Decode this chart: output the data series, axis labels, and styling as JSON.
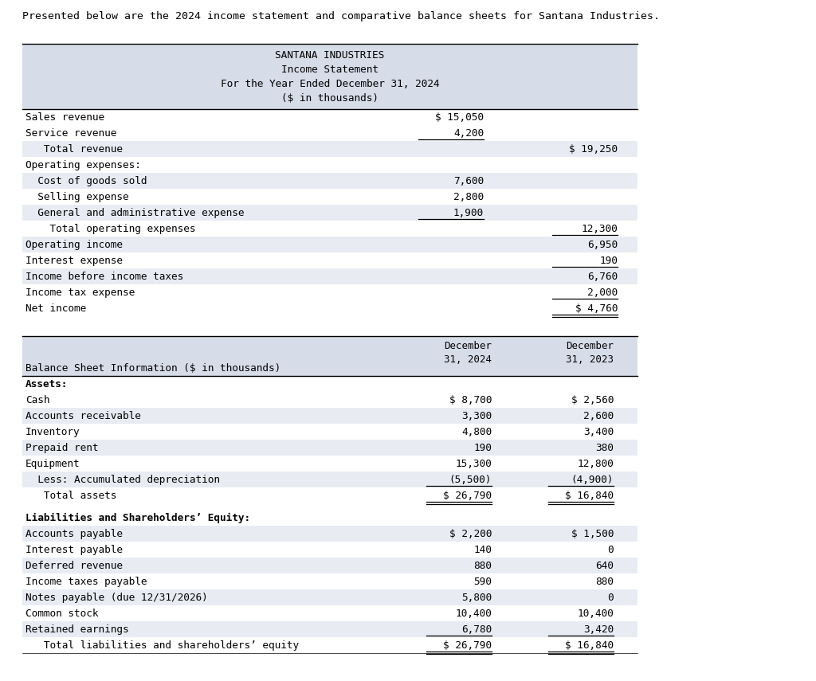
{
  "intro_text": "Presented below are the 2024 income statement and comparative balance sheets for Santana Industries.",
  "bg_color": "#ffffff",
  "header_bg": "#d6dce8",
  "row_bg_white": "#ffffff",
  "row_bg_alt": "#e8ecf2",
  "text_color": "#000000",
  "font_size": 9.2,
  "mono_font": "DejaVu Sans Mono",
  "income_statement": {
    "title_lines": [
      "SANTANA INDUSTRIES",
      "Income Statement",
      "For the Year Ended December 31, 2024",
      "($ in thousands)"
    ],
    "rows": [
      {
        "label": "Sales revenue",
        "col1": "$ 15,050",
        "col2": "",
        "underline_c1": false,
        "underline_c2": false,
        "double_c2": false
      },
      {
        "label": "Service revenue",
        "col1": "4,200",
        "col2": "",
        "underline_c1": true,
        "underline_c2": false,
        "double_c2": false
      },
      {
        "label": "   Total revenue",
        "col1": "",
        "col2": "$ 19,250",
        "underline_c1": false,
        "underline_c2": false,
        "double_c2": false
      },
      {
        "label": "Operating expenses:",
        "col1": "",
        "col2": "",
        "underline_c1": false,
        "underline_c2": false,
        "double_c2": false
      },
      {
        "label": "  Cost of goods sold",
        "col1": "7,600",
        "col2": "",
        "underline_c1": false,
        "underline_c2": false,
        "double_c2": false
      },
      {
        "label": "  Selling expense",
        "col1": "2,800",
        "col2": "",
        "underline_c1": false,
        "underline_c2": false,
        "double_c2": false
      },
      {
        "label": "  General and administrative expense",
        "col1": "1,900",
        "col2": "",
        "underline_c1": true,
        "underline_c2": false,
        "double_c2": false
      },
      {
        "label": "    Total operating expenses",
        "col1": "",
        "col2": "12,300",
        "underline_c1": false,
        "underline_c2": true,
        "double_c2": false
      },
      {
        "label": "Operating income",
        "col1": "",
        "col2": "6,950",
        "underline_c1": false,
        "underline_c2": false,
        "double_c2": false
      },
      {
        "label": "Interest expense",
        "col1": "",
        "col2": "190",
        "underline_c1": false,
        "underline_c2": true,
        "double_c2": false
      },
      {
        "label": "Income before income taxes",
        "col1": "",
        "col2": "6,760",
        "underline_c1": false,
        "underline_c2": false,
        "double_c2": false
      },
      {
        "label": "Income tax expense",
        "col1": "",
        "col2": "2,000",
        "underline_c1": false,
        "underline_c2": true,
        "double_c2": false
      },
      {
        "label": "Net income",
        "col1": "",
        "col2": "$ 4,760",
        "underline_c1": false,
        "underline_c2": false,
        "double_c2": true
      }
    ],
    "row_backgrounds": [
      "#ffffff",
      "#ffffff",
      "#e8ecf2",
      "#ffffff",
      "#e8ecf2",
      "#ffffff",
      "#e8ecf2",
      "#ffffff",
      "#e8ecf2",
      "#ffffff",
      "#e8ecf2",
      "#ffffff",
      "#ffffff"
    ]
  },
  "balance_sheet": {
    "header_label": "Balance Sheet Information ($ in thousands)",
    "col1_header": "December\n31, 2024",
    "col2_header": "December\n31, 2023",
    "rows": [
      {
        "label": "Assets:",
        "col1": "",
        "col2": "",
        "bold": true,
        "underline_c1": false,
        "underline_c2": false,
        "double": false,
        "gap_after": false
      },
      {
        "label": "Cash",
        "col1": "$ 8,700",
        "col2": "$ 2,560",
        "bold": false,
        "underline_c1": false,
        "underline_c2": false,
        "double": false,
        "gap_after": false
      },
      {
        "label": "Accounts receivable",
        "col1": "3,300",
        "col2": "2,600",
        "bold": false,
        "underline_c1": false,
        "underline_c2": false,
        "double": false,
        "gap_after": false
      },
      {
        "label": "Inventory",
        "col1": "4,800",
        "col2": "3,400",
        "bold": false,
        "underline_c1": false,
        "underline_c2": false,
        "double": false,
        "gap_after": false
      },
      {
        "label": "Prepaid rent",
        "col1": "190",
        "col2": "380",
        "bold": false,
        "underline_c1": false,
        "underline_c2": false,
        "double": false,
        "gap_after": false
      },
      {
        "label": "Equipment",
        "col1": "15,300",
        "col2": "12,800",
        "bold": false,
        "underline_c1": false,
        "underline_c2": false,
        "double": false,
        "gap_after": false
      },
      {
        "label": "  Less: Accumulated depreciation",
        "col1": "(5,500)",
        "col2": "(4,900)",
        "bold": false,
        "underline_c1": true,
        "underline_c2": true,
        "double": false,
        "gap_after": false
      },
      {
        "label": "   Total assets",
        "col1": "$ 26,790",
        "col2": "$ 16,840",
        "bold": false,
        "underline_c1": false,
        "underline_c2": false,
        "double": true,
        "gap_after": true
      },
      {
        "label": "Liabilities and Shareholders’ Equity:",
        "col1": "",
        "col2": "",
        "bold": true,
        "underline_c1": false,
        "underline_c2": false,
        "double": false,
        "gap_after": false
      },
      {
        "label": "Accounts payable",
        "col1": "$ 2,200",
        "col2": "$ 1,500",
        "bold": false,
        "underline_c1": false,
        "underline_c2": false,
        "double": false,
        "gap_after": false
      },
      {
        "label": "Interest payable",
        "col1": "140",
        "col2": "0",
        "bold": false,
        "underline_c1": false,
        "underline_c2": false,
        "double": false,
        "gap_after": false
      },
      {
        "label": "Deferred revenue",
        "col1": "880",
        "col2": "640",
        "bold": false,
        "underline_c1": false,
        "underline_c2": false,
        "double": false,
        "gap_after": false
      },
      {
        "label": "Income taxes payable",
        "col1": "590",
        "col2": "880",
        "bold": false,
        "underline_c1": false,
        "underline_c2": false,
        "double": false,
        "gap_after": false
      },
      {
        "label": "Notes payable (due 12/31/2026)",
        "col1": "5,800",
        "col2": "0",
        "bold": false,
        "underline_c1": false,
        "underline_c2": false,
        "double": false,
        "gap_after": false
      },
      {
        "label": "Common stock",
        "col1": "10,400",
        "col2": "10,400",
        "bold": false,
        "underline_c1": false,
        "underline_c2": false,
        "double": false,
        "gap_after": false
      },
      {
        "label": "Retained earnings",
        "col1": "6,780",
        "col2": "3,420",
        "bold": false,
        "underline_c1": true,
        "underline_c2": true,
        "double": false,
        "gap_after": false
      },
      {
        "label": "   Total liabilities and shareholders’ equity",
        "col1": "$ 26,790",
        "col2": "$ 16,840",
        "bold": false,
        "underline_c1": false,
        "underline_c2": false,
        "double": true,
        "gap_after": false
      }
    ],
    "row_backgrounds": [
      "#ffffff",
      "#ffffff",
      "#e8ecf2",
      "#ffffff",
      "#e8ecf2",
      "#ffffff",
      "#e8ecf2",
      "#ffffff",
      "#ffffff",
      "#e8ecf2",
      "#ffffff",
      "#e8ecf2",
      "#ffffff",
      "#e8ecf2",
      "#ffffff",
      "#e8ecf2",
      "#ffffff"
    ]
  }
}
